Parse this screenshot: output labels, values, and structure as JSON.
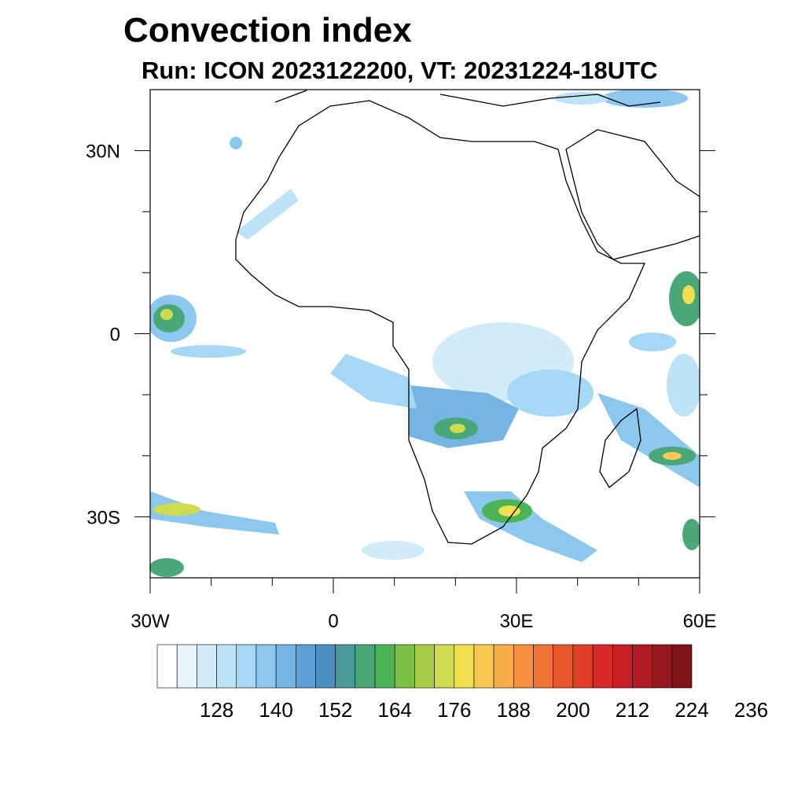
{
  "figure": {
    "title": "Convection index",
    "subtitle": "Run: ICON 2023122200,  VT: 20231224-18UTC"
  },
  "map": {
    "projection": "cylindrical equidistant",
    "lon_range": [
      -30,
      60
    ],
    "lat_range": [
      -40,
      40
    ],
    "x_ticks": [
      {
        "lon": -30,
        "label": "30W"
      },
      {
        "lon": 0,
        "label": "0"
      },
      {
        "lon": 30,
        "label": "30E"
      },
      {
        "lon": 60,
        "label": "60E"
      }
    ],
    "y_ticks": [
      {
        "lat": 30,
        "label": "30N"
      },
      {
        "lat": 0,
        "label": "0"
      },
      {
        "lat": -30,
        "label": "30S"
      }
    ]
  },
  "colorbar": {
    "colors": [
      "#ffffff",
      "#e8f4fc",
      "#d2ebf8",
      "#bce3f6",
      "#a4d8f4",
      "#8cc8ee",
      "#76b4e4",
      "#5e9ed6",
      "#4c90c2",
      "#4a9a9c",
      "#4aa878",
      "#4cb454",
      "#7cc044",
      "#a8cc48",
      "#d0dc50",
      "#f0e050",
      "#f8c850",
      "#f8ae48",
      "#f49040",
      "#ee7434",
      "#e8582c",
      "#e04028",
      "#d82828",
      "#c81e26",
      "#b01a22",
      "#98161e",
      "#80121a"
    ],
    "labels": [
      "128",
      "140",
      "152",
      "164",
      "176",
      "188",
      "200",
      "212",
      "224",
      "236"
    ]
  }
}
